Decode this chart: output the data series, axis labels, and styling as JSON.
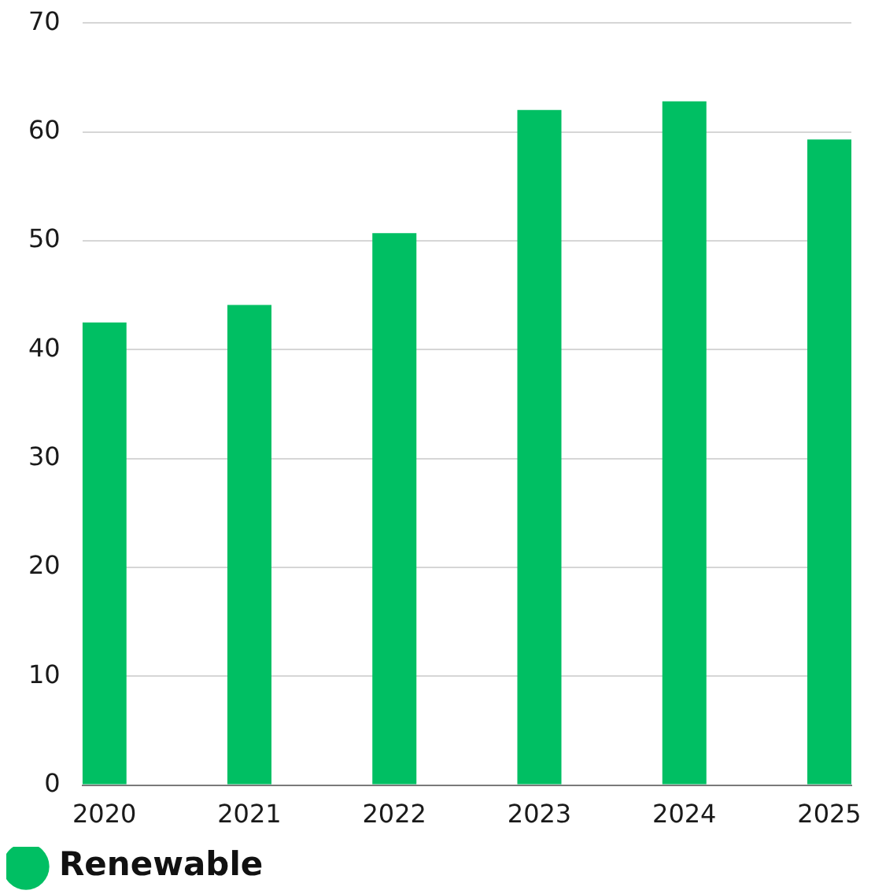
{
  "chart_data": {
    "type": "bar",
    "categories": [
      "2020",
      "2021",
      "2022",
      "2023",
      "2024",
      "2025"
    ],
    "series": [
      {
        "name": "Renewable",
        "color": "#00bf63",
        "values": [
          42.5,
          44.1,
          50.7,
          62.0,
          62.8,
          59.3
        ]
      }
    ],
    "ylim": [
      0,
      70
    ],
    "yticks": [
      0,
      10,
      20,
      30,
      40,
      50,
      60,
      70
    ],
    "grid": "y",
    "legend": "bottom left"
  }
}
